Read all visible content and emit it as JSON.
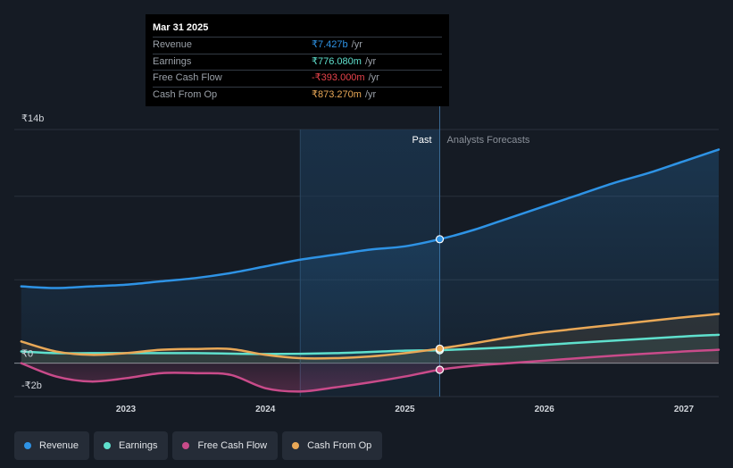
{
  "chart_data": {
    "type": "line",
    "title": "",
    "x_range": [
      2022.2,
      2027.25
    ],
    "y_range": [
      -2,
      14
    ],
    "y_tick_labels": [
      {
        "value": 14,
        "label": "₹14b"
      },
      {
        "value": 0,
        "label": "₹0"
      },
      {
        "value": -2,
        "label": "-₹2b"
      }
    ],
    "x_tick_labels": [
      {
        "value": 2023,
        "label": "2023"
      },
      {
        "value": 2024,
        "label": "2024"
      },
      {
        "value": 2025,
        "label": "2025"
      },
      {
        "value": 2026,
        "label": "2026"
      },
      {
        "value": 2027,
        "label": "2027"
      }
    ],
    "highlight_start": 2024.25,
    "divider_x": 2025.25,
    "past_label": "Past",
    "forecast_label": "Analysts Forecasts",
    "series": [
      {
        "name": "Revenue",
        "color": "#2e93e5",
        "filled": true,
        "points": [
          [
            2022.25,
            4.6
          ],
          [
            2022.5,
            4.5
          ],
          [
            2022.75,
            4.6
          ],
          [
            2023,
            4.7
          ],
          [
            2023.25,
            4.9
          ],
          [
            2023.5,
            5.1
          ],
          [
            2023.75,
            5.4
          ],
          [
            2024,
            5.8
          ],
          [
            2024.25,
            6.2
          ],
          [
            2024.5,
            6.5
          ],
          [
            2024.75,
            6.8
          ],
          [
            2025,
            7.0
          ],
          [
            2025.25,
            7.427
          ],
          [
            2025.5,
            8.0
          ],
          [
            2025.75,
            8.7
          ],
          [
            2026,
            9.4
          ],
          [
            2026.25,
            10.1
          ],
          [
            2026.5,
            10.8
          ],
          [
            2026.75,
            11.4
          ],
          [
            2027,
            12.1
          ],
          [
            2027.25,
            12.8
          ]
        ]
      },
      {
        "name": "Earnings",
        "color": "#5fe0cd",
        "filled": false,
        "points": [
          [
            2022.25,
            0.7
          ],
          [
            2022.5,
            0.6
          ],
          [
            2022.75,
            0.6
          ],
          [
            2023,
            0.6
          ],
          [
            2023.5,
            0.6
          ],
          [
            2024,
            0.55
          ],
          [
            2024.5,
            0.6
          ],
          [
            2025,
            0.75
          ],
          [
            2025.25,
            0.776
          ],
          [
            2025.75,
            0.95
          ],
          [
            2026,
            1.1
          ],
          [
            2026.5,
            1.35
          ],
          [
            2027,
            1.6
          ],
          [
            2027.25,
            1.7
          ]
        ]
      },
      {
        "name": "Free Cash Flow",
        "color": "#c94b8a",
        "filled": false,
        "points": [
          [
            2022.25,
            0.0
          ],
          [
            2022.5,
            -0.8
          ],
          [
            2022.75,
            -1.1
          ],
          [
            2023,
            -0.9
          ],
          [
            2023.25,
            -0.6
          ],
          [
            2023.5,
            -0.6
          ],
          [
            2023.75,
            -0.7
          ],
          [
            2024,
            -1.5
          ],
          [
            2024.25,
            -1.7
          ],
          [
            2024.5,
            -1.45
          ],
          [
            2024.75,
            -1.15
          ],
          [
            2025,
            -0.8
          ],
          [
            2025.25,
            -0.393
          ],
          [
            2025.5,
            -0.15
          ],
          [
            2025.75,
            0.0
          ],
          [
            2026,
            0.15
          ],
          [
            2026.5,
            0.45
          ],
          [
            2027,
            0.7
          ],
          [
            2027.25,
            0.8
          ]
        ]
      },
      {
        "name": "Cash From Op",
        "color": "#e9a857",
        "filled": false,
        "points": [
          [
            2022.25,
            1.3
          ],
          [
            2022.5,
            0.7
          ],
          [
            2022.75,
            0.5
          ],
          [
            2023,
            0.6
          ],
          [
            2023.25,
            0.8
          ],
          [
            2023.5,
            0.85
          ],
          [
            2023.75,
            0.85
          ],
          [
            2024,
            0.5
          ],
          [
            2024.25,
            0.3
          ],
          [
            2024.5,
            0.3
          ],
          [
            2024.75,
            0.4
          ],
          [
            2025,
            0.6
          ],
          [
            2025.25,
            0.873
          ],
          [
            2025.5,
            1.2
          ],
          [
            2025.75,
            1.55
          ],
          [
            2026,
            1.85
          ],
          [
            2026.5,
            2.3
          ],
          [
            2027,
            2.75
          ],
          [
            2027.25,
            2.95
          ]
        ]
      }
    ]
  },
  "tooltip": {
    "date": "Mar 31 2025",
    "rows": [
      {
        "label": "Revenue",
        "value": "₹7.427b",
        "unit": "/yr",
        "color": "#2e93e5"
      },
      {
        "label": "Earnings",
        "value": "₹776.080m",
        "unit": "/yr",
        "color": "#5fe0cd"
      },
      {
        "label": "Free Cash Flow",
        "value": "-₹393.000m",
        "unit": "/yr",
        "color": "#e8434b"
      },
      {
        "label": "Cash From Op",
        "value": "₹873.270m",
        "unit": "/yr",
        "color": "#e9a857"
      }
    ]
  },
  "legend": [
    {
      "label": "Revenue",
      "color": "#2e93e5"
    },
    {
      "label": "Earnings",
      "color": "#5fe0cd"
    },
    {
      "label": "Free Cash Flow",
      "color": "#c94b8a"
    },
    {
      "label": "Cash From Op",
      "color": "#e9a857"
    }
  ]
}
